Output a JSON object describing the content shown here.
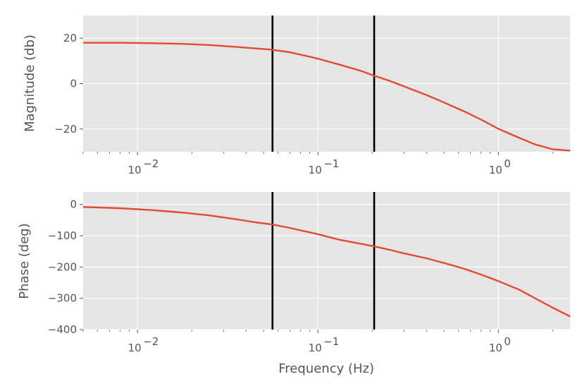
{
  "chart_data": [
    {
      "type": "line",
      "id": "magnitude",
      "ylabel": "Magnitude (db)",
      "xlabel": "",
      "xscale": "log",
      "xlim": [
        0.005,
        2.5
      ],
      "ylim": [
        -30,
        30
      ],
      "yticks": [
        20,
        0,
        -20
      ],
      "ytick_labels": [
        "20",
        "0",
        "−20"
      ],
      "xticks": [
        0.01,
        0.1,
        1
      ],
      "xtick_base": "10",
      "xtick_exponents": [
        "−2",
        "−1",
        "0"
      ],
      "grid": true,
      "series": [
        {
          "color": "#e24a33",
          "x": [
            0.005,
            0.008,
            0.012,
            0.018,
            0.025,
            0.035,
            0.045,
            0.055,
            0.07,
            0.085,
            0.1,
            0.13,
            0.17,
            0.205,
            0.25,
            0.3,
            0.4,
            0.5,
            0.65,
            0.8,
            1.0,
            1.3,
            1.6,
            2.0,
            2.5
          ],
          "y": [
            18.0,
            18.0,
            17.8,
            17.5,
            17.0,
            16.2,
            15.5,
            15.0,
            13.8,
            12.3,
            11.0,
            8.5,
            5.8,
            3.5,
            1.2,
            -1.2,
            -5.0,
            -8.3,
            -12.3,
            -15.8,
            -19.9,
            -23.8,
            -26.8,
            -28.9,
            -29.5
          ]
        }
      ],
      "vlines": [
        0.056,
        0.205
      ]
    },
    {
      "type": "line",
      "id": "phase",
      "ylabel": "Phase (deg)",
      "xlabel": "Frequency (Hz)",
      "xscale": "log",
      "xlim": [
        0.005,
        2.5
      ],
      "ylim": [
        -400,
        40
      ],
      "yticks": [
        0,
        -100,
        -200,
        -300,
        -400
      ],
      "ytick_labels": [
        "0",
        "−100",
        "−200",
        "−300",
        "−400"
      ],
      "xticks": [
        0.01,
        0.1,
        1
      ],
      "xtick_base": "10",
      "xtick_exponents": [
        "−2",
        "−1",
        "0"
      ],
      "grid": true,
      "series": [
        {
          "color": "#e24a33",
          "x": [
            0.005,
            0.008,
            0.012,
            0.018,
            0.025,
            0.035,
            0.045,
            0.056,
            0.07,
            0.085,
            0.1,
            0.13,
            0.17,
            0.205,
            0.25,
            0.3,
            0.4,
            0.5,
            0.65,
            0.8,
            1.0,
            1.3,
            1.6,
            2.0,
            2.5
          ],
          "y": [
            -8,
            -12,
            -18,
            -26,
            -35,
            -47,
            -57,
            -64,
            -75,
            -86,
            -95,
            -112,
            -125,
            -134,
            -145,
            -156,
            -172,
            -187,
            -206,
            -224,
            -245,
            -272,
            -300,
            -330,
            -358
          ]
        }
      ],
      "vlines": [
        0.056,
        0.205
      ]
    }
  ]
}
